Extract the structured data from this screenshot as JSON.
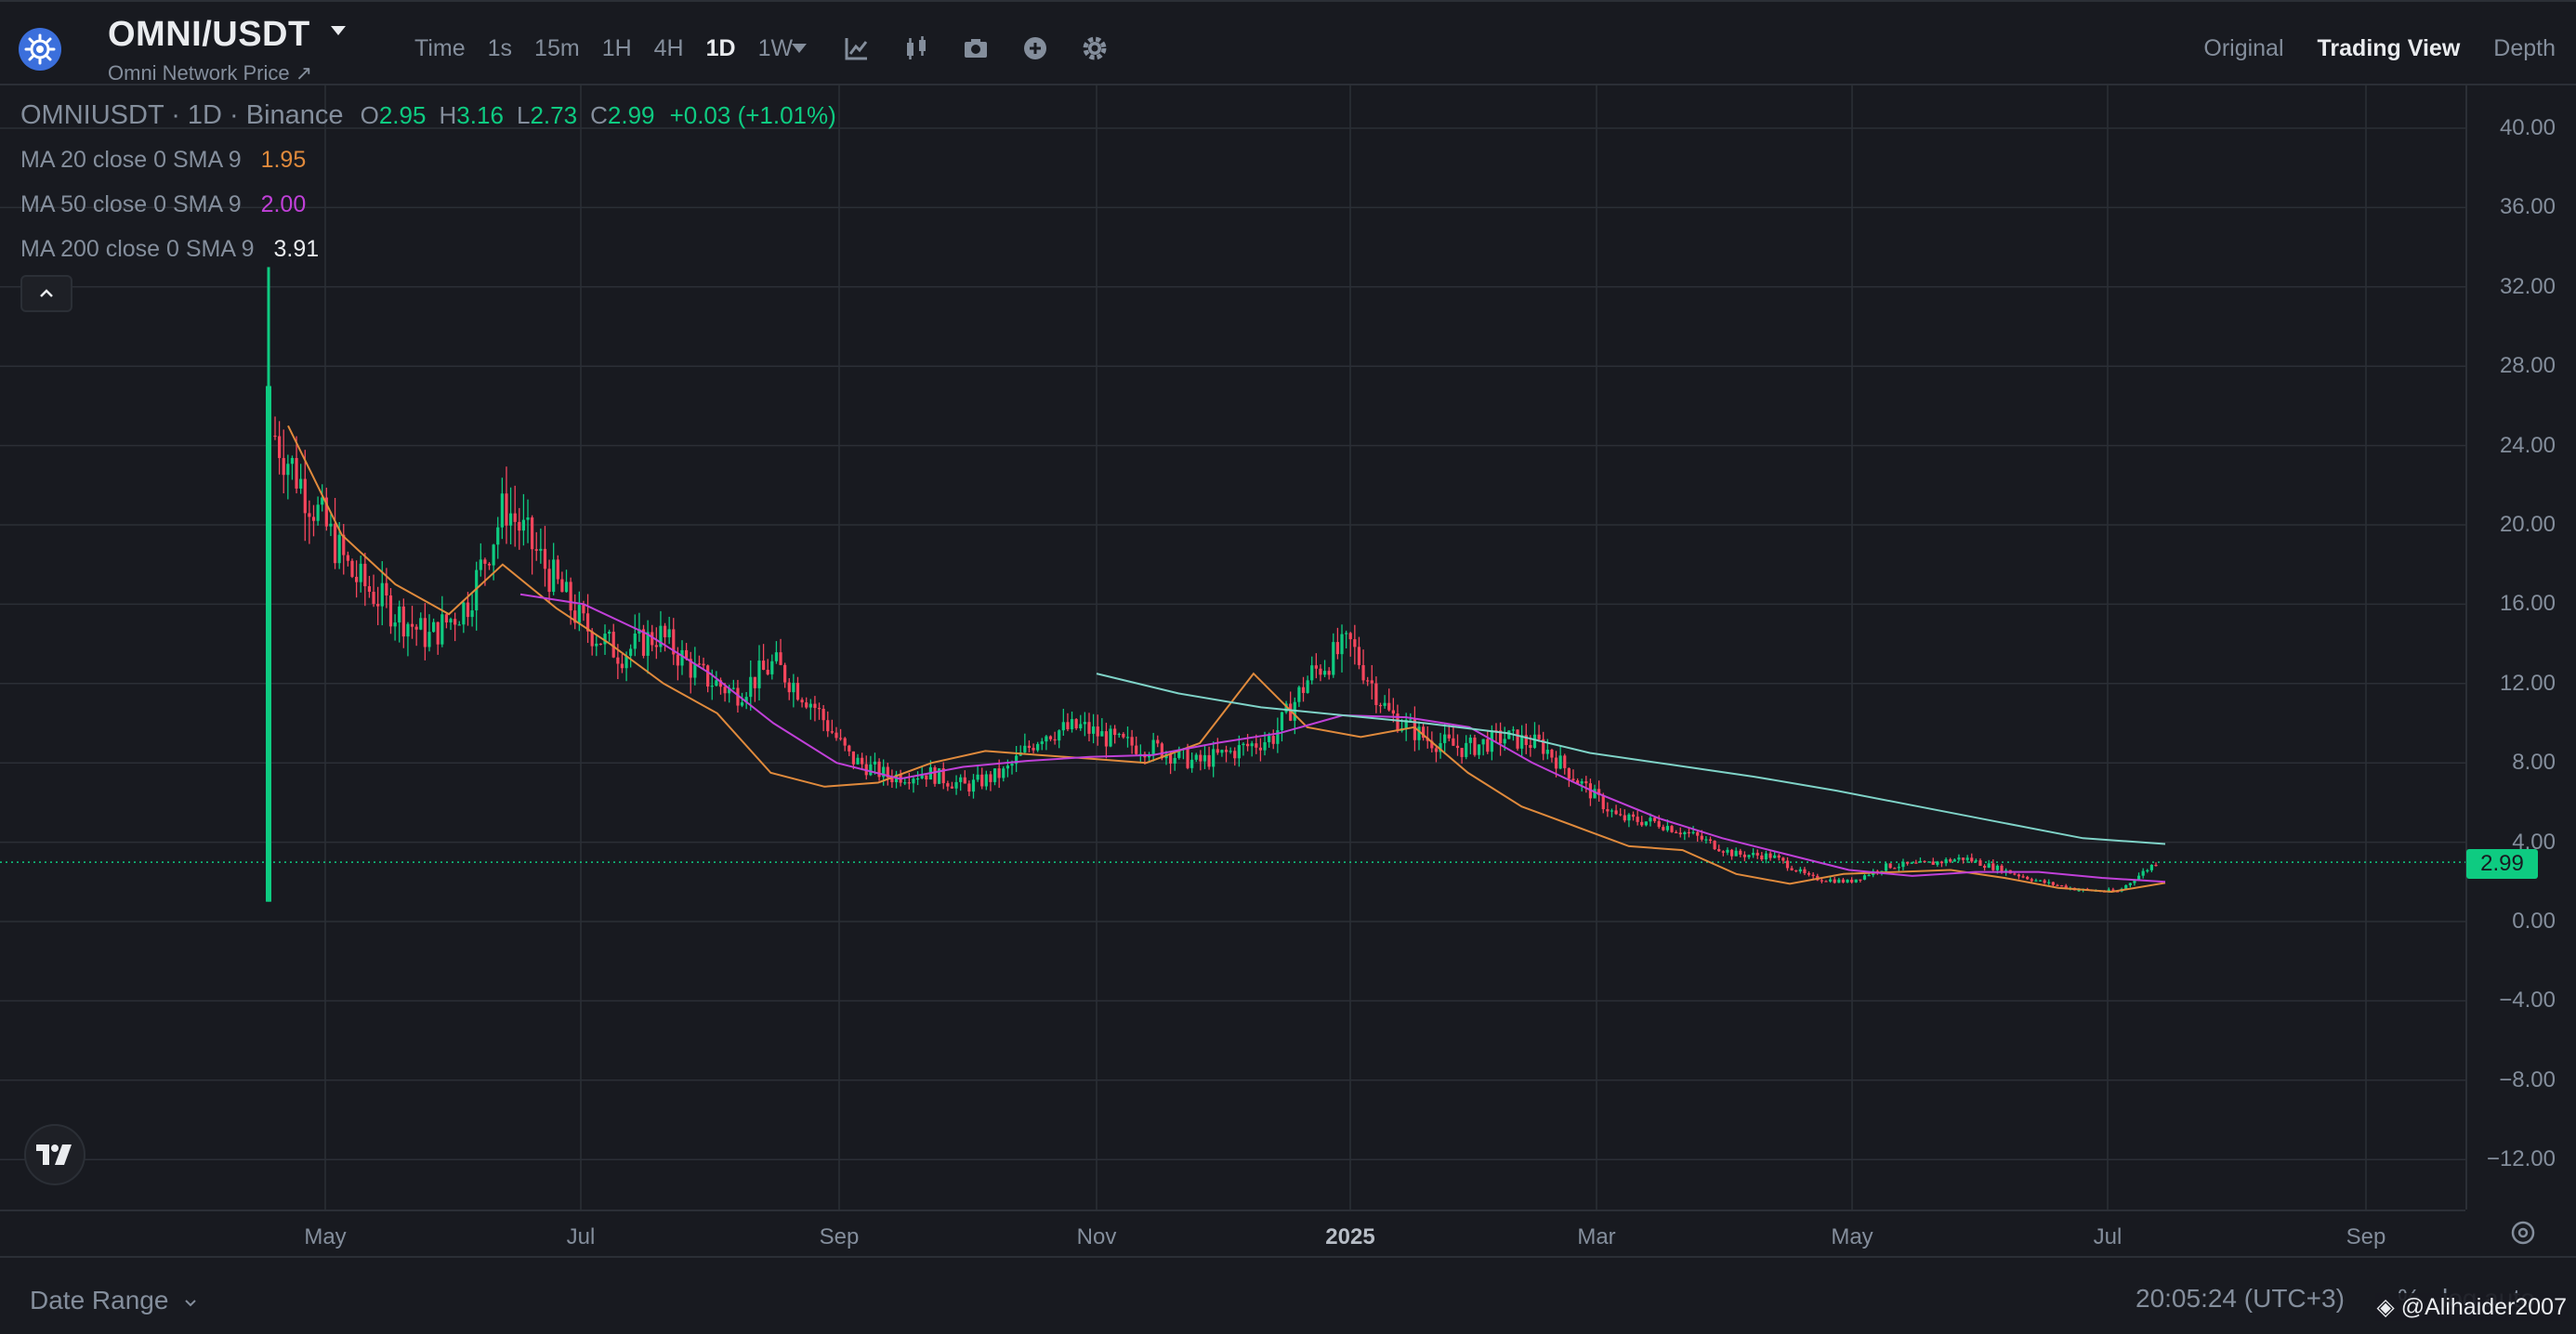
{
  "header": {
    "symbol": "OMNI/USDT",
    "subtitle": "Omni Network Price ↗",
    "intervals": [
      "Time",
      "1s",
      "15m",
      "1H",
      "4H",
      "1D",
      "1W"
    ],
    "active_interval": "1D",
    "view_tabs": [
      "Original",
      "Trading View",
      "Depth"
    ],
    "active_view": "Trading View"
  },
  "legend": {
    "title": "OMNIUSDT · 1D · Binance",
    "o_label": "O",
    "o": "2.95",
    "h_label": "H",
    "h": "3.16",
    "l_label": "L",
    "l": "2.73",
    "c_label": "C",
    "c": "2.99",
    "change": "+0.03 (+1.01%)",
    "ma20_label": "MA 20 close 0 SMA 9",
    "ma20_value": "1.95",
    "ma20_color": "#e08a3c",
    "ma50_label": "MA 50 close 0 SMA 9",
    "ma50_value": "2.00",
    "ma50_color": "#c040d8",
    "ma200_label": "MA 200 close 0 SMA 9",
    "ma200_value": "3.91",
    "ma200_color": "#7fd3c8"
  },
  "price_axis": {
    "labels": [
      "40.00",
      "36.00",
      "32.00",
      "28.00",
      "24.00",
      "20.00",
      "16.00",
      "12.00",
      "8.00",
      "4.00",
      "0.00",
      "−4.00",
      "−8.00",
      "−12.00"
    ],
    "last_price": "2.99",
    "up_color": "#0ecb81",
    "down_color": "#f6465d"
  },
  "time_axis": {
    "labels": [
      "May",
      "Jul",
      "Sep",
      "Nov",
      "2025",
      "Mar",
      "May",
      "Jul",
      "Sep"
    ]
  },
  "bottom": {
    "date_range": "Date Range",
    "clock": "20:05:24 (UTC+3)",
    "percent": "%",
    "log_auto": "log  auto",
    "watermark": "@Alihaider2007"
  },
  "chart_data": {
    "type": "candlestick",
    "title": "OMNIUSDT · 1D · Binance",
    "ylim": [
      -14,
      42
    ],
    "series": [
      {
        "name": "MA 20 close 0 SMA 9",
        "values": [
          25.0,
          19.5,
          17.0,
          15.5,
          18.0,
          15.8,
          14.0,
          12.0,
          10.5,
          7.5,
          6.8,
          7.0,
          8.0,
          8.6,
          8.4,
          8.2,
          8.0,
          9.0,
          12.5,
          9.8,
          9.3,
          9.8,
          7.5,
          5.8,
          4.8,
          3.8,
          3.6,
          2.4,
          1.9,
          2.4,
          2.5,
          2.6,
          2.2,
          1.7,
          1.5,
          1.95
        ]
      },
      {
        "name": "MA 50 close 0 SMA 9",
        "values": [
          16.5,
          16.0,
          14.5,
          12.5,
          10.0,
          8.0,
          7.2,
          7.8,
          8.1,
          8.3,
          8.4,
          9.0,
          9.5,
          10.4,
          10.3,
          9.8,
          8.0,
          6.5,
          5.2,
          4.2,
          3.4,
          2.6,
          2.3,
          2.5,
          2.5,
          2.2,
          2.0
        ]
      },
      {
        "name": "MA 200 close 0 SMA 9",
        "values": [
          12.5,
          11.5,
          10.8,
          10.4,
          10.0,
          9.5,
          8.5,
          7.9,
          7.3,
          6.6,
          5.8,
          5.0,
          4.2,
          3.91
        ]
      }
    ],
    "candles_approx_close": [
      24.5,
      21.0,
      17.5,
      15.8,
      14.3,
      16.0,
      21.0,
      18.0,
      15.0,
      13.5,
      14.5,
      12.5,
      11.5,
      13.0,
      11.0,
      8.2,
      7.3,
      7.5,
      6.8,
      7.5,
      9.5,
      9.8,
      9.0,
      8.7,
      8.0,
      8.6,
      9.3,
      12.5,
      14.0,
      10.5,
      9.2,
      8.7,
      9.3,
      8.9,
      7.0,
      5.2,
      5.0,
      4.3,
      3.4,
      3.3,
      2.2,
      2.0,
      2.8,
      2.9,
      3.2,
      2.6,
      2.0,
      1.6,
      1.5,
      2.99
    ],
    "ytick_labels": [
      "40.00",
      "36.00",
      "32.00",
      "28.00",
      "24.00",
      "20.00",
      "16.00",
      "12.00",
      "8.00",
      "4.00",
      "0.00",
      "−4.00",
      "−8.00",
      "−12.00"
    ],
    "xtick_labels": [
      "May",
      "Jul",
      "Sep",
      "Nov",
      "2025",
      "Mar",
      "May",
      "Jul",
      "Sep"
    ],
    "grid": true
  }
}
